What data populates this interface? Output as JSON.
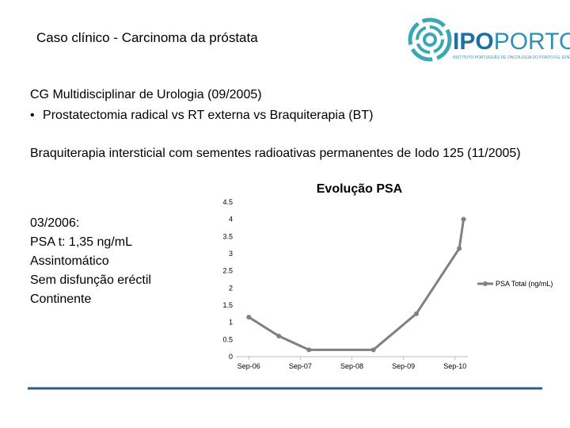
{
  "header": {
    "title": "Caso clínico - Carcinoma da próstata",
    "logo": {
      "name": [
        "IPO",
        "PORTO"
      ],
      "subtitle": "INSTITUTO PORTUGUÊS DE ONCOLOGIA DO PORTO FG, EPE"
    }
  },
  "body": {
    "heading": "CG Multidisciplinar de Urologia (09/2005)",
    "bullets": [
      "Prostatectomia radical vs RT externa vs Braquiterapia (BT)"
    ],
    "paragraph": "Braquiterapia intersticial com sementes radioativas permanentes de Iodo 125 (11/2005)",
    "notes": [
      "03/2006:",
      "PSA t: 1,35 ng/mL",
      "Assintomático",
      "Sem disfunção eréctil",
      "Continente"
    ]
  },
  "chart_data": {
    "type": "line",
    "title": "Evolução PSA",
    "x": [
      "2006-09",
      "2007-04",
      "2007-11",
      "2009-02",
      "2009-12",
      "2010-10",
      "2010-11"
    ],
    "series": [
      {
        "name": "PSA Total (ng/mL)",
        "color": "#808080",
        "values": [
          1.15,
          0.6,
          0.2,
          0.2,
          1.25,
          3.15,
          4.0
        ]
      }
    ],
    "xlim": [
      "2006-06",
      "2010-12"
    ],
    "xticks": [
      {
        "value": "2006-09",
        "label": "Sep-06"
      },
      {
        "value": "2007-09",
        "label": "Sep-07"
      },
      {
        "value": "2008-09",
        "label": "Sep-08"
      },
      {
        "value": "2009-09",
        "label": "Sep-09"
      },
      {
        "value": "2010-09",
        "label": "Sep-10"
      }
    ],
    "ylim": [
      0,
      4.5
    ],
    "yticks": [
      0,
      0.5,
      1,
      1.5,
      2,
      2.5,
      3,
      3.5,
      4,
      4.5
    ],
    "legend": "right"
  }
}
